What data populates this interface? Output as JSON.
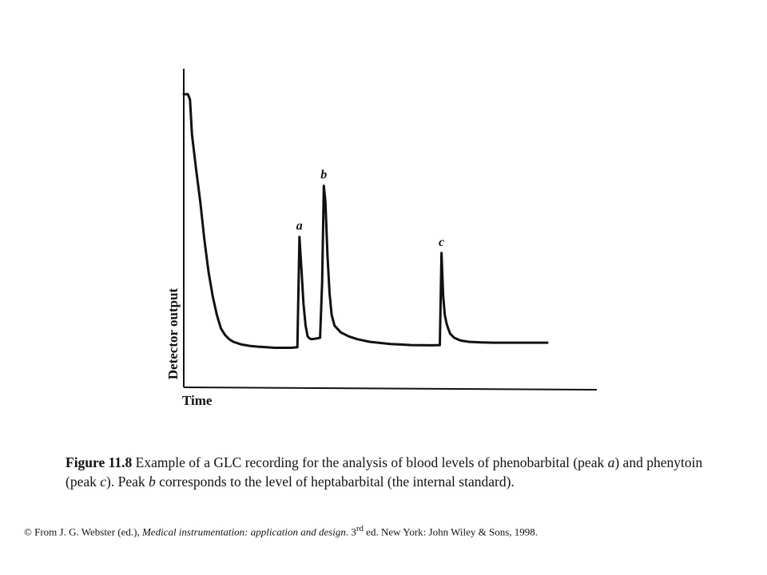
{
  "chart_data": {
    "type": "line",
    "title": "",
    "xlabel": "Time",
    "ylabel": "Detector output",
    "x_ticks": "none",
    "y_ticks": "none",
    "grid": false,
    "legend": "none",
    "xlim": [
      0,
      100
    ],
    "ylim": [
      0,
      100
    ],
    "series": [
      {
        "x": [
          0.0,
          0.5,
          1.0,
          1.5,
          2.0,
          3.0,
          4.0,
          5.0,
          6.0,
          7.0,
          8.0,
          9.0,
          10.0,
          11.0,
          12.0,
          14.0,
          16.0,
          18.0,
          20.0,
          22.0,
          24.0,
          26.0,
          27.5,
          28.0,
          28.5,
          29.0,
          29.5,
          30.0,
          30.5,
          31.0,
          32.0,
          33.0,
          33.5,
          33.9,
          34.3,
          34.8,
          35.3,
          35.8,
          36.5,
          38.0,
          40.0,
          42.0,
          45.0,
          50.0,
          55.0,
          60.0,
          62.0,
          62.4,
          62.8,
          63.2,
          63.6,
          64.0,
          64.5,
          65.5,
          67.0,
          69.0,
          72.0,
          75.0,
          80.0,
          85.0,
          88.0
        ],
        "y": [
          100.0,
          100.0,
          100.0,
          98.0,
          85.0,
          72.0,
          60.0,
          46.0,
          34.0,
          25.0,
          18.0,
          13.0,
          10.5,
          9.0,
          8.0,
          7.0,
          6.5,
          6.2,
          6.0,
          5.8,
          5.8,
          5.8,
          6.0,
          47.0,
          35.0,
          22.0,
          14.0,
          10.0,
          9.2,
          9.0,
          9.2,
          9.5,
          30.0,
          66.0,
          60.0,
          40.0,
          26.0,
          18.0,
          14.0,
          11.5,
          10.0,
          9.0,
          8.0,
          7.2,
          6.8,
          6.7,
          6.8,
          41.0,
          25.0,
          18.0,
          15.0,
          13.0,
          11.0,
          9.5,
          8.5,
          8.0,
          7.8,
          7.7,
          7.7,
          7.7,
          7.7
        ]
      }
    ],
    "annotations": [
      {
        "text": "a",
        "x": 28.0,
        "y": 47.0
      },
      {
        "text": "b",
        "x": 33.9,
        "y": 66.0
      },
      {
        "text": "c",
        "x": 62.4,
        "y": 41.0
      }
    ]
  },
  "caption": {
    "figure_number": "Figure 11.8",
    "text_1": "  Example of a GLC recording for the analysis of blood levels of phenobarbital (peak ",
    "peak_a": "a",
    "text_2": ") and phenytoin (peak ",
    "peak_c": "c",
    "text_3": "). Peak ",
    "peak_b": "b",
    "text_4": " corresponds to the level of heptabarbital (the internal standard)."
  },
  "credit": {
    "prefix": "© From J. G. Webster (ed.), ",
    "title_italic": "Medical instrumentation: application and design",
    "middle": ". 3",
    "superscript": "rd",
    "suffix": " ed. New York: John Wiley & Sons, 1998."
  },
  "colors": {
    "line": "#111111",
    "background": "#ffffff"
  }
}
